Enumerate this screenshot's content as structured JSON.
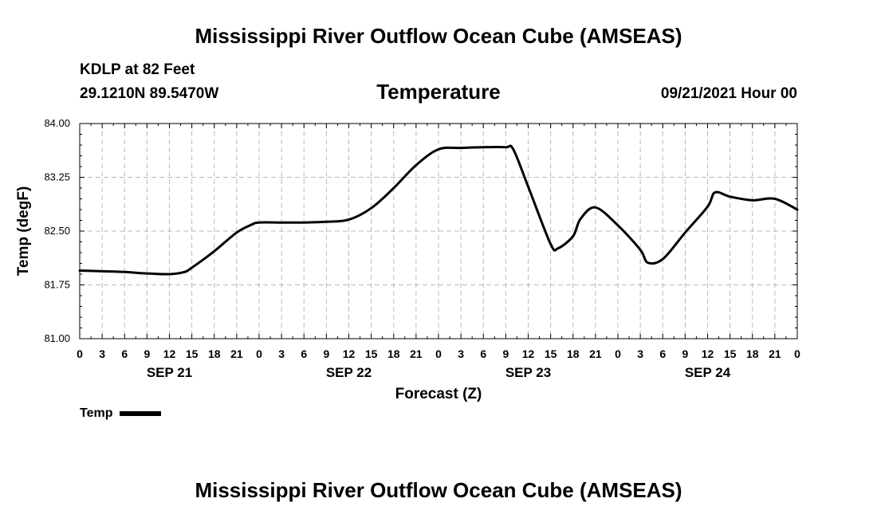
{
  "header": {
    "title": "Mississippi River Outflow Ocean Cube (AMSEAS)",
    "station": "KDLP at 82 Feet",
    "coords": "29.1210N  89.5470W",
    "subtitle": "Temperature",
    "run_time": "09/21/2021 Hour 00"
  },
  "footer": {
    "title": "Mississippi River Outflow Ocean Cube (AMSEAS)"
  },
  "legend": {
    "label": "Temp",
    "color": "#000000"
  },
  "chart_data": {
    "type": "line",
    "title": "Temperature",
    "xlabel": "Forecast (Z)",
    "ylabel": "Temp (degF)",
    "ylim": [
      81.0,
      84.0
    ],
    "xlim": [
      0,
      96
    ],
    "y_ticks": [
      "81.00",
      "81.75",
      "82.50",
      "83.25",
      "84.00"
    ],
    "x_tick_labels": [
      "0",
      "3",
      "6",
      "9",
      "12",
      "15",
      "18",
      "21",
      "0",
      "3",
      "6",
      "9",
      "12",
      "15",
      "18",
      "21",
      "0",
      "3",
      "6",
      "9",
      "12",
      "15",
      "18",
      "21",
      "0",
      "3",
      "6",
      "9",
      "12",
      "15",
      "18",
      "21",
      "0"
    ],
    "day_labels": [
      {
        "label": "SEP 21",
        "hour": 12
      },
      {
        "label": "SEP 22",
        "hour": 36
      },
      {
        "label": "SEP 23",
        "hour": 60
      },
      {
        "label": "SEP 24",
        "hour": 84
      }
    ],
    "grid": true,
    "series": [
      {
        "name": "Temp",
        "color": "#000000",
        "x": [
          0,
          3,
          6,
          9,
          12,
          14,
          15,
          18,
          21,
          23,
          24,
          27,
          30,
          33,
          36,
          39,
          42,
          45,
          48,
          51,
          54,
          57,
          58,
          60,
          63,
          64,
          66,
          67,
          69,
          72,
          75,
          76,
          78,
          81,
          84,
          85,
          87,
          90,
          93,
          96
        ],
        "values": [
          81.95,
          81.94,
          81.93,
          81.91,
          81.9,
          81.93,
          81.99,
          82.22,
          82.48,
          82.59,
          82.62,
          82.62,
          82.62,
          82.63,
          82.66,
          82.82,
          83.1,
          83.42,
          83.64,
          83.66,
          83.67,
          83.67,
          83.64,
          83.12,
          82.32,
          82.26,
          82.43,
          82.67,
          82.83,
          82.58,
          82.24,
          82.06,
          82.11,
          82.48,
          82.84,
          83.04,
          82.98,
          82.93,
          82.95,
          82.8
        ]
      }
    ]
  }
}
